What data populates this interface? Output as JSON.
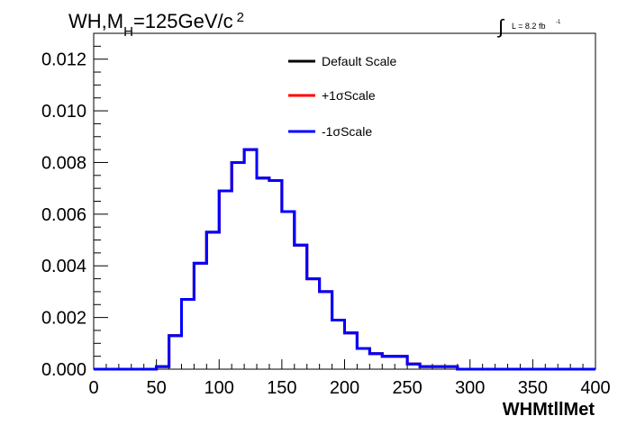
{
  "chart_data": {
    "type": "line",
    "title_parts": {
      "a": "WH,M",
      "sub": "H",
      "b": "=125GeV/c",
      "sup": "2"
    },
    "lumi_label": "L = 8.2 fb",
    "lumi_exp": "-1",
    "lumi_symbol": "∫",
    "xlabel": "WHMtllMet",
    "ylabel": "",
    "xlim": [
      0,
      400
    ],
    "ylim": [
      0,
      0.013
    ],
    "x_ticks": [
      0,
      50,
      100,
      150,
      200,
      250,
      300,
      350,
      400
    ],
    "x_tick_labels": [
      "0",
      "50",
      "100",
      "150",
      "200",
      "250",
      "300",
      "350",
      "400"
    ],
    "y_ticks": [
      0.0,
      0.002,
      0.004,
      0.006,
      0.008,
      0.01,
      0.012
    ],
    "y_tick_labels": [
      "0.000",
      "0.002",
      "0.004",
      "0.006",
      "0.008",
      "0.010",
      "0.012"
    ],
    "grid": false,
    "legend_position": "top-center",
    "bin_edges": [
      0,
      10,
      20,
      30,
      40,
      50,
      60,
      70,
      80,
      90,
      100,
      110,
      120,
      130,
      140,
      150,
      160,
      170,
      180,
      190,
      200,
      210,
      220,
      230,
      240,
      250,
      260,
      270,
      280,
      290,
      300,
      310,
      320,
      330,
      340,
      350,
      360,
      370,
      380,
      390,
      400
    ],
    "series": [
      {
        "name": "Default Scale",
        "color": "#000000",
        "values": [
          0,
          0,
          0,
          0,
          0,
          0.0001,
          0.0013,
          0.0027,
          0.0041,
          0.0053,
          0.0069,
          0.008,
          0.0085,
          0.0074,
          0.0073,
          0.0061,
          0.0048,
          0.0035,
          0.003,
          0.0019,
          0.0014,
          0.0008,
          0.0006,
          0.0005,
          0.0005,
          0.0002,
          0.0001,
          0.0001,
          0.0001,
          0,
          0,
          0,
          0,
          0,
          0,
          0,
          0,
          0,
          0,
          0
        ]
      },
      {
        "name": "+1σScale",
        "color": "#ff0000",
        "values": [
          0,
          0,
          0,
          0,
          0,
          0.0001,
          0.0013,
          0.0027,
          0.0041,
          0.0053,
          0.0069,
          0.008,
          0.0085,
          0.0074,
          0.0073,
          0.0061,
          0.0048,
          0.0035,
          0.003,
          0.0019,
          0.0014,
          0.0008,
          0.0006,
          0.0005,
          0.0005,
          0.0002,
          0.0001,
          0.0001,
          0.0001,
          0,
          0,
          0,
          0,
          0,
          0,
          0,
          0,
          0,
          0,
          0
        ]
      },
      {
        "name": "-1σScale",
        "color": "#0000ff",
        "values": [
          0,
          0,
          0,
          0,
          0,
          0.0001,
          0.0013,
          0.0027,
          0.0041,
          0.0053,
          0.0069,
          0.008,
          0.0085,
          0.0074,
          0.0073,
          0.0061,
          0.0048,
          0.0035,
          0.003,
          0.0019,
          0.0014,
          0.0008,
          0.0006,
          0.0005,
          0.0005,
          0.0002,
          0.0001,
          0.0001,
          0.0001,
          0,
          0,
          0,
          0,
          0,
          0,
          0,
          0,
          0,
          0,
          0
        ]
      }
    ]
  }
}
